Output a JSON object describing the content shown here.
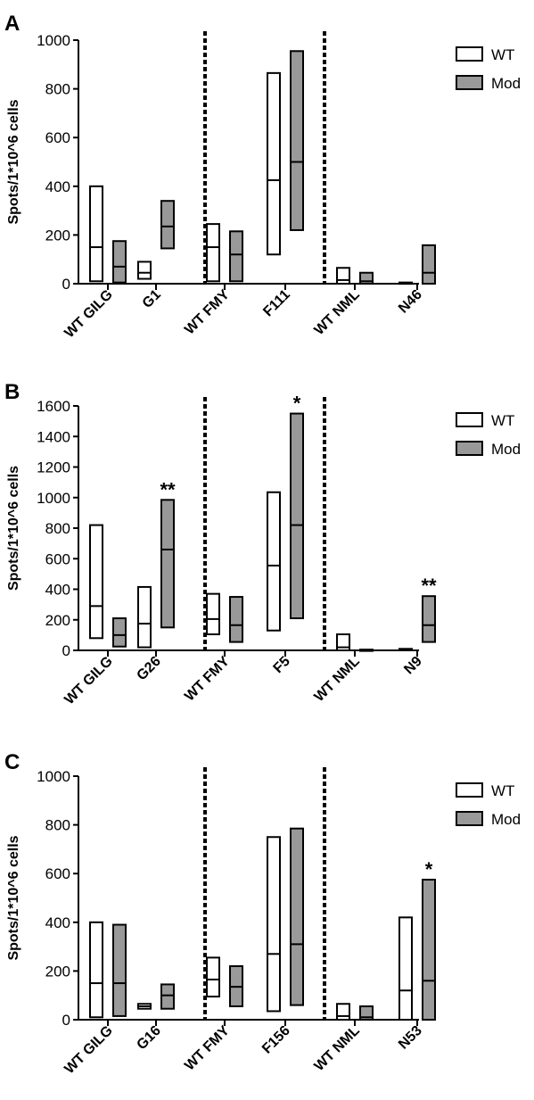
{
  "legend": {
    "items": [
      {
        "label": "WT",
        "color": "#ffffff"
      },
      {
        "label": "Mod",
        "color": "#999999"
      }
    ]
  },
  "chart_data": [
    {
      "type": "bar",
      "panel": "A",
      "ylabel": "Spots/1*10^6 cells",
      "ylim": [
        0,
        1000
      ],
      "yticks": [
        0,
        200,
        400,
        600,
        800,
        1000
      ],
      "categories": [
        "WT GILG",
        "G1",
        "WT FMY",
        "F111",
        "WT NML",
        "N46"
      ],
      "series": [
        {
          "name": "WT",
          "color": "#ffffff",
          "boxes": [
            {
              "category": "WT GILG",
              "min": 10,
              "median": 150,
              "max": 400
            },
            {
              "category": "G1",
              "min": 20,
              "median": 45,
              "max": 90
            },
            {
              "category": "WT FMY",
              "min": 10,
              "median": 150,
              "max": 245
            },
            {
              "category": "F111",
              "min": 120,
              "median": 425,
              "max": 865
            },
            {
              "category": "WT NML",
              "min": 0,
              "median": 15,
              "max": 65
            },
            {
              "category": "N46",
              "min": 0,
              "median": 2,
              "max": 5
            }
          ]
        },
        {
          "name": "Mod",
          "color": "#999999",
          "boxes": [
            {
              "category": "WT GILG",
              "min": 5,
              "median": 70,
              "max": 175
            },
            {
              "category": "G1",
              "min": 145,
              "median": 235,
              "max": 340
            },
            {
              "category": "WT FMY",
              "min": 10,
              "median": 120,
              "max": 215
            },
            {
              "category": "F111",
              "min": 220,
              "median": 500,
              "max": 955
            },
            {
              "category": "WT NML",
              "min": 0,
              "median": 10,
              "max": 45
            },
            {
              "category": "N46",
              "min": 0,
              "median": 45,
              "max": 158
            }
          ]
        }
      ],
      "annotations": []
    },
    {
      "type": "bar",
      "panel": "B",
      "ylabel": "Spots/1*10^6 cells",
      "ylim": [
        0,
        1600
      ],
      "yticks": [
        0,
        200,
        400,
        600,
        800,
        1000,
        1200,
        1400,
        1600
      ],
      "categories": [
        "WT GILG",
        "G26",
        "WT FMY",
        "F5",
        "WT NML",
        "N9"
      ],
      "series": [
        {
          "name": "WT",
          "color": "#ffffff",
          "boxes": [
            {
              "category": "WT GILG",
              "min": 80,
              "median": 290,
              "max": 820
            },
            {
              "category": "G26",
              "min": 20,
              "median": 175,
              "max": 415
            },
            {
              "category": "WT FMY",
              "min": 105,
              "median": 205,
              "max": 370
            },
            {
              "category": "F5",
              "min": 130,
              "median": 555,
              "max": 1035
            },
            {
              "category": "WT NML",
              "min": 0,
              "median": 20,
              "max": 105
            },
            {
              "category": "N9",
              "min": 0,
              "median": 5,
              "max": 10
            }
          ]
        },
        {
          "name": "Mod",
          "color": "#999999",
          "boxes": [
            {
              "category": "WT GILG",
              "min": 25,
              "median": 100,
              "max": 210
            },
            {
              "category": "G26",
              "min": 150,
              "median": 660,
              "max": 985
            },
            {
              "category": "WT FMY",
              "min": 55,
              "median": 165,
              "max": 350
            },
            {
              "category": "F5",
              "min": 210,
              "median": 820,
              "max": 1550
            },
            {
              "category": "WT NML",
              "min": 0,
              "median": 2,
              "max": 5
            },
            {
              "category": "N9",
              "min": 55,
              "median": 165,
              "max": 355
            }
          ]
        }
      ],
      "annotations": [
        {
          "text": "**",
          "category": "G26",
          "series": "Mod"
        },
        {
          "text": "*",
          "category": "F5",
          "series": "Mod"
        },
        {
          "text": "**",
          "category": "N9",
          "series": "Mod"
        }
      ]
    },
    {
      "type": "bar",
      "panel": "C",
      "ylabel": "Spots/1*10^6 cells",
      "ylim": [
        0,
        1000
      ],
      "yticks": [
        0,
        200,
        400,
        600,
        800,
        1000
      ],
      "categories": [
        "WT GILG",
        "G16",
        "WT FMY",
        "F156",
        "WT NML",
        "N53"
      ],
      "series": [
        {
          "name": "WT",
          "color": "#ffffff",
          "boxes": [
            {
              "category": "WT GILG",
              "min": 10,
              "median": 150,
              "max": 400
            },
            {
              "category": "G16",
              "min": 45,
              "median": 55,
              "max": 65
            },
            {
              "category": "WT FMY",
              "min": 95,
              "median": 165,
              "max": 255
            },
            {
              "category": "F156",
              "min": 35,
              "median": 270,
              "max": 750
            },
            {
              "category": "WT NML",
              "min": 0,
              "median": 15,
              "max": 65
            },
            {
              "category": "N53",
              "min": 0,
              "median": 120,
              "max": 420
            }
          ]
        },
        {
          "name": "Mod",
          "color": "#999999",
          "boxes": [
            {
              "category": "WT GILG",
              "min": 15,
              "median": 150,
              "max": 390
            },
            {
              "category": "G16",
              "min": 45,
              "median": 100,
              "max": 145
            },
            {
              "category": "WT FMY",
              "min": 55,
              "median": 135,
              "max": 220
            },
            {
              "category": "F156",
              "min": 60,
              "median": 310,
              "max": 785
            },
            {
              "category": "WT NML",
              "min": 0,
              "median": 10,
              "max": 55
            },
            {
              "category": "N53",
              "min": 0,
              "median": 160,
              "max": 575
            }
          ]
        }
      ],
      "annotations": [
        {
          "text": "*",
          "category": "N53",
          "series": "Mod"
        }
      ]
    }
  ]
}
